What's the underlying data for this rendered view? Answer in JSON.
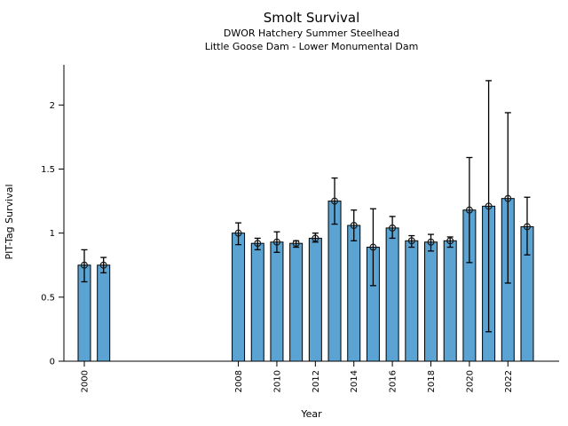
{
  "header": {
    "title": "Smolt Survival",
    "subtitle1": "DWOR Hatchery Summer Steelhead",
    "subtitle2": "Little Goose Dam - Lower Monumental Dam"
  },
  "axes": {
    "xlabel": "Year",
    "ylabel": "PIT-Tag Survival"
  },
  "colors": {
    "bar_fill": "#5aa3d2",
    "bar_edge": "#000000",
    "error_bar": "#000000",
    "marker_edge": "#1a1a1a",
    "axis": "#000000",
    "background": "#ffffff"
  },
  "chart_data": {
    "type": "bar",
    "title": "Smolt Survival",
    "subtitle": [
      "DWOR Hatchery Summer Steelhead",
      "Little Goose Dam - Lower Monumental Dam"
    ],
    "xlabel": "Year",
    "ylabel": "PIT-Tag Survival",
    "x": [
      2000,
      2001,
      2008,
      2009,
      2010,
      2011,
      2012,
      2013,
      2014,
      2015,
      2016,
      2017,
      2018,
      2019,
      2020,
      2021,
      2022,
      2023
    ],
    "values": [
      0.75,
      0.75,
      1.0,
      0.92,
      0.93,
      0.92,
      0.96,
      1.25,
      1.06,
      0.89,
      1.04,
      0.94,
      0.93,
      0.94,
      1.18,
      1.21,
      1.27,
      1.05
    ],
    "error_low": [
      0.62,
      0.69,
      0.91,
      0.87,
      0.85,
      0.89,
      0.93,
      1.07,
      0.94,
      0.59,
      0.96,
      0.89,
      0.86,
      0.89,
      0.77,
      0.23,
      0.61,
      0.83
    ],
    "error_high": [
      0.87,
      0.81,
      1.08,
      0.96,
      1.01,
      0.94,
      1.0,
      1.43,
      1.18,
      1.19,
      1.13,
      0.98,
      0.99,
      0.97,
      1.59,
      2.19,
      1.94,
      1.28
    ],
    "xticks": [
      2000,
      2008,
      2010,
      2012,
      2014,
      2016,
      2018,
      2020,
      2022
    ],
    "yticks": [
      0,
      0.5,
      1,
      1.5,
      2
    ],
    "xlim": [
      1998.94,
      2024.66
    ],
    "ylim": [
      0,
      2.3
    ],
    "grid": false,
    "legend": null,
    "error_bars": true,
    "marker": "open-circle"
  }
}
